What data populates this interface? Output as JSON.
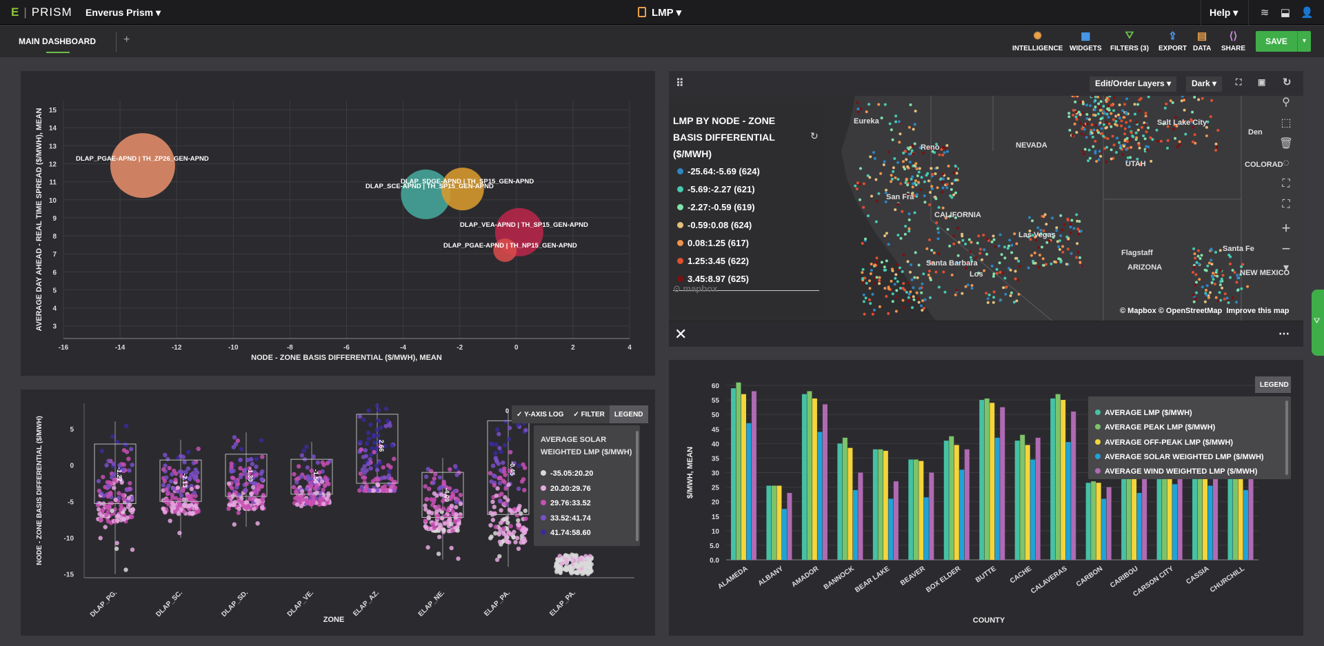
{
  "app": {
    "logo_mark": "E",
    "logo_text": "PRISM",
    "workspace": "Enverus Prism",
    "page": "LMP",
    "help": "Help"
  },
  "subbar": {
    "tab": "MAIN DASHBOARD",
    "plus": "+"
  },
  "toolbar": {
    "intelligence": "INTELLIGENCE",
    "widgets": "WIDGETS",
    "filters": "FILTERS (3)",
    "export": "EXPORT",
    "data": "DATA",
    "share": "SHARE",
    "save": "SAVE"
  },
  "bubble_chart": {
    "type": "scatter",
    "xlabel": "NODE - ZONE BASIS DIFFERENTIAL ($/MWH), MEAN",
    "ylabel": "AVERAGE DAY AHEAD - REAL TIME SPREAD ($/MWH), MEAN",
    "xlim": [
      -16,
      4
    ],
    "ylim": [
      2.3,
      15.5
    ],
    "xticks": [
      "-16",
      "-14",
      "-12",
      "-10",
      "-8",
      "-6",
      "-4",
      "-2",
      "0",
      "2",
      "4"
    ],
    "yticks": [
      "3",
      "4",
      "5",
      "6",
      "7",
      "8",
      "9",
      "10",
      "11",
      "12",
      "13",
      "14",
      "15"
    ],
    "points": [
      {
        "label": "DLAP_PGAE-APND | TH_ZP26_GEN-APND",
        "x": -13.2,
        "y": 11.9,
        "color": "#e48d6a"
      },
      {
        "label": "DLAP_SCE-APND | TH_SP15_GEN-APND",
        "x": -3.2,
        "y": 10.3,
        "color": "#46a79c"
      },
      {
        "label": "DLAP_SDGE-APND | TH_SP15_GEN-APND",
        "x": -1.9,
        "y": 10.6,
        "color": "#d89a2e"
      },
      {
        "label": "DLAP_VEA-APND | TH_SP15_GEN-APND",
        "x": 0.1,
        "y": 8.2,
        "color": "#b8264a"
      },
      {
        "label": "DLAP_PGAE-APND | TH_NP15_GEN-APND",
        "x": -0.4,
        "y": 7.2,
        "color": "#d84b4b"
      }
    ]
  },
  "map": {
    "edit_layers": "Edit/Order Layers",
    "theme": "Dark",
    "legend_title": "LMP BY NODE - ZONE BASIS DIFFERENTIAL ($/MWH)",
    "legend_items": [
      {
        "label": "-25.64:-5.69 (624)",
        "color": "#2e86c1"
      },
      {
        "label": "-5.69:-2.27 (621)",
        "color": "#48c9b0"
      },
      {
        "label": "-2.27:-0.59 (619)",
        "color": "#82e0aa"
      },
      {
        "label": "-0.59:0.08 (624)",
        "color": "#e5c07b"
      },
      {
        "label": "0.08:1.25 (617)",
        "color": "#f0934b"
      },
      {
        "label": "1.25:3.45 (622)",
        "color": "#e0502f"
      },
      {
        "label": "3.45:8.97 (625)",
        "color": "#7b1010"
      }
    ],
    "places": [
      "Eureka",
      "Reno",
      "NEVADA",
      "UTAH",
      "Salt Lake City",
      "COLORAD",
      "San Fra",
      "CALIFORNIA",
      "Las Vegas",
      "Santa Barbara",
      "Los",
      "Flagstaff",
      "ARIZONA",
      "Santa Fe",
      "NEW MEXICO",
      "Den"
    ],
    "mapbox": "mapbox",
    "attribution": "© Mapbox © OpenStreetMap",
    "improve": "Improve this map"
  },
  "box_chart": {
    "type": "box",
    "xlabel": "ZONE",
    "ylabel": "NODE - ZONE BASIS DIFFERENTIAL ($/MWH)",
    "ylim": [
      -15.5,
      8.5
    ],
    "yticks": [
      "5",
      "0",
      "-5",
      "-10",
      "-15"
    ],
    "categories": [
      "DLAP_PG.",
      "DLAP_SC.",
      "DLAP_SD.",
      "DLAP_VE.",
      "ELAP_AZ.",
      "ELAP_NE.",
      "ELAP_PA.",
      "ELAP_PA."
    ],
    "boxes": [
      {
        "q1": -5.3,
        "q3": 2.9,
        "median": -1.27,
        "min": -15,
        "max": 6,
        "label": "-1.27"
      },
      {
        "q1": -5.0,
        "q3": 0.7,
        "median": -2.13,
        "min": -10,
        "max": 3.5,
        "label": "-2.13"
      },
      {
        "q1": -4.3,
        "q3": 1.5,
        "median": -1.3,
        "min": -8.5,
        "max": 4.5,
        "label": "-1.30"
      },
      {
        "q1": -4.0,
        "q3": 0.8,
        "median": -1.56,
        "min": -6,
        "max": 3.2,
        "label": "-1.56"
      },
      {
        "q1": -2.5,
        "q3": 7.0,
        "median": 2.66,
        "min": -3.5,
        "max": 8.5,
        "label": "2.66"
      },
      {
        "q1": -7.2,
        "q3": -1.0,
        "median": -4.09,
        "min": -13,
        "max": 1,
        "label": "-4.09"
      },
      {
        "q1": -6.8,
        "q3": 6.1,
        "median": -0.45,
        "min": -14,
        "max": 7.5,
        "label": "-0.45"
      },
      {
        "q1": null,
        "q3": null,
        "median": null,
        "min": -15,
        "max": -12.3,
        "label": ""
      }
    ],
    "top_value": "0",
    "buttons": [
      "Y-AXIS LOG",
      "FILTER",
      "LEGEND"
    ],
    "legend_title": "AVERAGE SOLAR WEIGHTED LMP ($/MWH)",
    "legend_items": [
      {
        "label": "-35.05:20.20",
        "color": "#d9d9d9"
      },
      {
        "label": "20.20:29.76",
        "color": "#e6a8e0"
      },
      {
        "label": "29.76:33.52",
        "color": "#c84fb3"
      },
      {
        "label": "33.52:41.74",
        "color": "#7a4fc8"
      },
      {
        "label": "41.74:58.60",
        "color": "#3a2a9a"
      }
    ]
  },
  "bar_chart": {
    "type": "bar",
    "xlabel": "COUNTY",
    "ylabel": "$/MWH, MEAN",
    "ylim": [
      0,
      60
    ],
    "yticks": [
      "0.0",
      "5.0",
      "10",
      "15",
      "20",
      "25",
      "30",
      "35",
      "40",
      "45",
      "50",
      "55",
      "60"
    ],
    "categories": [
      "ALAMEDA",
      "ALBANY",
      "AMADOR",
      "BANNOCK",
      "BEAR LAKE",
      "BEAVER",
      "BOX ELDER",
      "BUTTE",
      "CACHE",
      "CALAVERAS",
      "CARBON",
      "CARIBOU",
      "CARSON CITY",
      "CASSIA",
      "CHURCHILL"
    ],
    "legend_button": "LEGEND",
    "series": [
      {
        "name": "AVERAGE LMP ($/MWH)",
        "color": "#45c1a4",
        "values": [
          59,
          25.5,
          57,
          40,
          38,
          34.5,
          41,
          55,
          41,
          55.5,
          26.5,
          29.5,
          31,
          29.5,
          29.5
        ]
      },
      {
        "name": "AVERAGE PEAK LMP ($/MWH)",
        "color": "#7cc46a",
        "values": [
          61,
          25.5,
          58,
          42,
          38,
          34.5,
          42.5,
          55.5,
          43,
          57,
          27,
          30,
          32,
          30,
          30
        ]
      },
      {
        "name": "AVERAGE OFF-PEAK LMP ($/MWH)",
        "color": "#f4d53a",
        "values": [
          57,
          25.5,
          55.5,
          38.5,
          37.5,
          34,
          39.5,
          54,
          39.5,
          55,
          26.5,
          29,
          30.5,
          28.5,
          29
        ]
      },
      {
        "name": "AVERAGE SOLAR WEIGHTED LMP ($/MWH)",
        "color": "#1fa3d8",
        "values": [
          47,
          17.5,
          44,
          24,
          21,
          21.5,
          31,
          42,
          34.5,
          40.5,
          21,
          23,
          26,
          25.5,
          24
        ]
      },
      {
        "name": "AVERAGE WIND WEIGHTED LMP ($/MWH)",
        "color": "#b06ab3",
        "values": [
          58,
          23,
          53.5,
          30,
          27,
          30,
          38,
          52.5,
          42,
          51,
          25,
          28,
          30.5,
          28,
          29
        ]
      }
    ]
  },
  "colors": {
    "accent": "#3fae49",
    "panel": "#2b2b2f"
  }
}
